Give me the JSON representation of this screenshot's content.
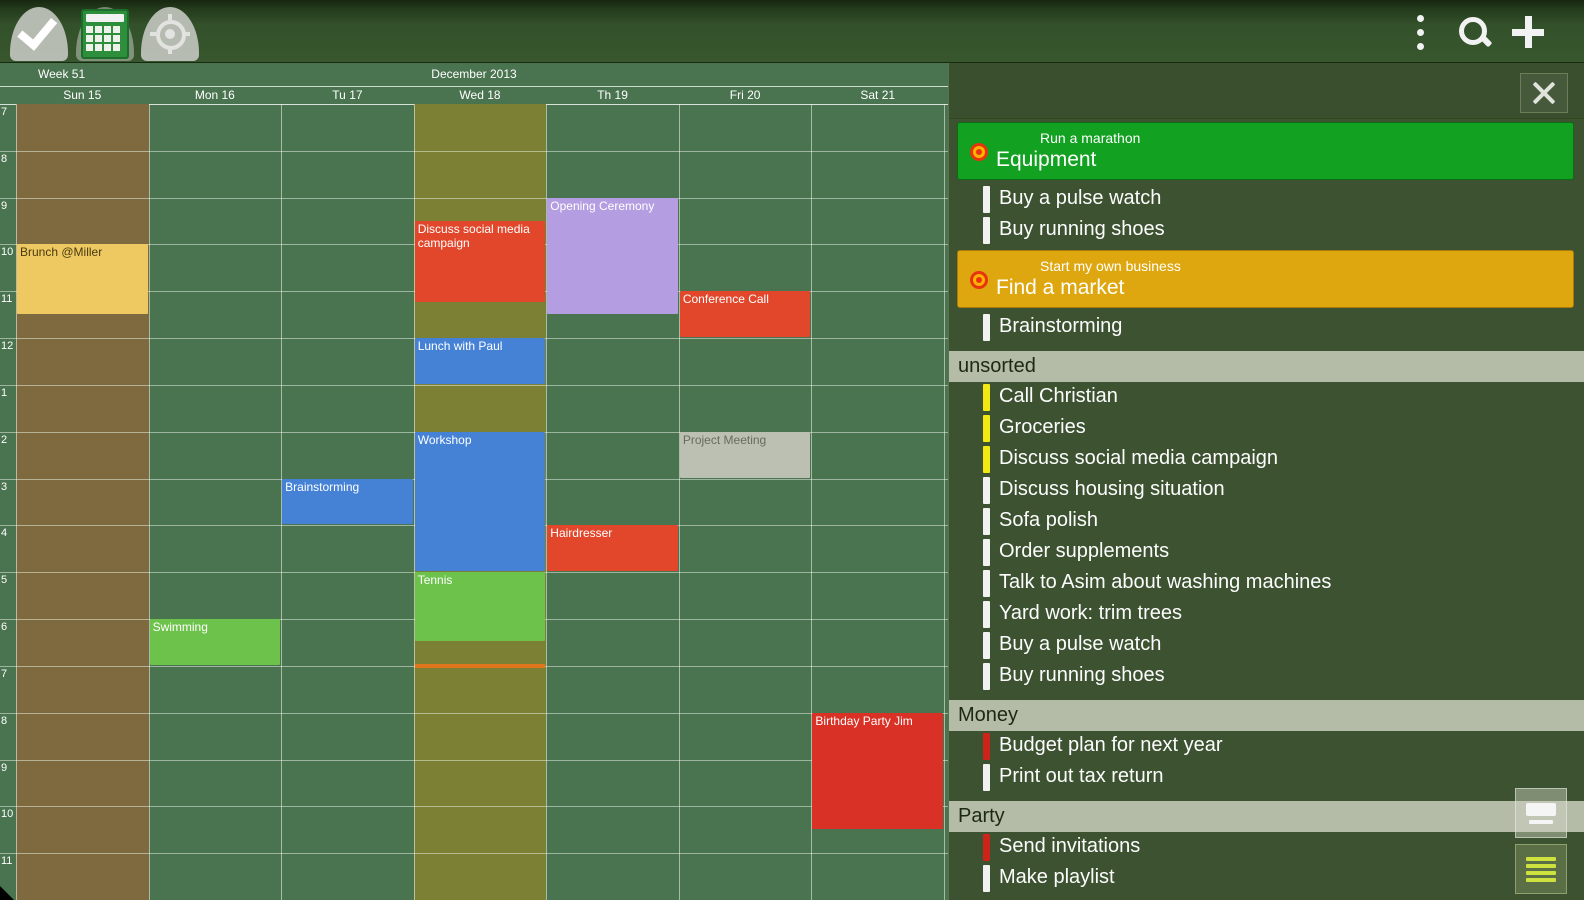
{
  "toolbar": {
    "left_buttons": [
      {
        "name": "done-button",
        "icon": "check-icon"
      },
      {
        "name": "calendar-view-button",
        "icon": "calendar-icon"
      },
      {
        "name": "goals-button",
        "icon": "target-icon"
      }
    ],
    "right_buttons": [
      {
        "name": "overflow-menu-button",
        "icon": "kebab-menu-icon"
      },
      {
        "name": "search-button",
        "icon": "search-icon"
      },
      {
        "name": "add-button",
        "icon": "plus-icon"
      }
    ]
  },
  "calendar": {
    "week_label": "Week 51",
    "month_label": "December  2013",
    "colors": {
      "base_day_bg": "#4a7350",
      "sunday_bg": "#7f6a3f",
      "wednesday_bg": "#7b8034",
      "gridline": "rgba(240,248,238,0.5)"
    },
    "days": [
      {
        "label": "Sun 15",
        "bg": "#7f6a3f"
      },
      {
        "label": "Mon 16",
        "bg": ""
      },
      {
        "label": "Tu 17",
        "bg": ""
      },
      {
        "label": "Wed 18",
        "bg": "#7b8034"
      },
      {
        "label": "Th 19",
        "bg": ""
      },
      {
        "label": "Fri 20",
        "bg": ""
      },
      {
        "label": "Sat 21",
        "bg": ""
      }
    ],
    "hour_labels": [
      "7",
      "8",
      "9",
      "10",
      "11",
      "12",
      "1",
      "2",
      "3",
      "4",
      "5",
      "6",
      "7",
      "8",
      "9",
      "10",
      "11"
    ],
    "events": [
      {
        "day": 0,
        "start": 10,
        "end": 11.5,
        "color": "#eec961",
        "text_color": "#4a3a12",
        "text": "Brunch @Miller"
      },
      {
        "day": 1,
        "start": 18,
        "end": 19,
        "color": "#6dc24b",
        "text_color": "#ffffff",
        "text": "Swimming"
      },
      {
        "day": 2,
        "start": 15,
        "end": 16,
        "color": "#4582d6",
        "text_color": "#ffffff",
        "text": "Brainstorming"
      },
      {
        "day": 3,
        "start": 9.5,
        "end": 11.25,
        "color": "#e2472c",
        "text_color": "#ffffff",
        "text": "Discuss social media campaign"
      },
      {
        "day": 3,
        "start": 12,
        "end": 13,
        "color": "#4582d6",
        "text_color": "#ffffff",
        "text": "Lunch with Paul"
      },
      {
        "day": 3,
        "start": 14,
        "end": 17,
        "color": "#4582d6",
        "text_color": "#ffffff",
        "text": "Workshop"
      },
      {
        "day": 3,
        "start": 17,
        "end": 18.5,
        "color": "#6dc24b",
        "text_color": "#ffffff",
        "text": "Tennis"
      },
      {
        "day": 4,
        "start": 9,
        "end": 11.5,
        "color": "#b49de0",
        "text_color": "#ffffff",
        "text": "Opening Ceremony"
      },
      {
        "day": 4,
        "start": 16,
        "end": 17,
        "color": "#e2472c",
        "text_color": "#ffffff",
        "text": "Hairdresser"
      },
      {
        "day": 5,
        "start": 11,
        "end": 12,
        "color": "#e2472c",
        "text_color": "#ffffff",
        "text": "Conference Call"
      },
      {
        "day": 5,
        "start": 14,
        "end": 15,
        "color": "#bcc0b3",
        "text_color": "#666b60",
        "text": "Project Meeting"
      },
      {
        "day": 6,
        "start": 20,
        "end": 22.5,
        "color": "#d93125",
        "text_color": "#ffffff",
        "text": "Birthday Party Jim"
      }
    ],
    "time_marker": {
      "day": 3,
      "at": 19,
      "color": "#e0761c"
    }
  },
  "panel": {
    "close_icon": "close-icon",
    "sections": [
      {
        "type": "goal",
        "bg": "#12a120",
        "border": "#0a6d14",
        "subtitle": "Run a marathon",
        "title": "Equipment"
      },
      {
        "type": "task",
        "bar": "#f2f2f2",
        "text": "Buy a pulse watch"
      },
      {
        "type": "task",
        "bar": "#f2f2f2",
        "text": "Buy running shoes"
      },
      {
        "type": "goal",
        "bg": "#dfa70f",
        "border": "#a87c06",
        "subtitle": "Start my own business",
        "title": "Find a market"
      },
      {
        "type": "task",
        "bar": "#f2f2f2",
        "text": "Brainstorming"
      },
      {
        "type": "header",
        "text": "unsorted"
      },
      {
        "type": "task",
        "bar": "#f2e813",
        "text": "Call Christian"
      },
      {
        "type": "task",
        "bar": "#f2e813",
        "text": "Groceries"
      },
      {
        "type": "task",
        "bar": "#f2e813",
        "text": "Discuss social media campaign"
      },
      {
        "type": "task",
        "bar": "#f2f2f2",
        "text": "Discuss housing situation"
      },
      {
        "type": "task",
        "bar": "#f2f2f2",
        "text": "Sofa polish"
      },
      {
        "type": "task",
        "bar": "#f2f2f2",
        "text": "Order supplements"
      },
      {
        "type": "task",
        "bar": "#f2f2f2",
        "text": "Talk to Asim about washing machines"
      },
      {
        "type": "task",
        "bar": "#f2f2f2",
        "text": "Yard work: trim trees"
      },
      {
        "type": "task",
        "bar": "#f2f2f2",
        "text": "Buy a pulse watch"
      },
      {
        "type": "task",
        "bar": "#f2f2f2",
        "text": "Buy running shoes"
      },
      {
        "type": "header",
        "text": "Money"
      },
      {
        "type": "task",
        "bar": "#cc2418",
        "text": "Budget plan for next year"
      },
      {
        "type": "task",
        "bar": "#f2f2f2",
        "text": "Print out tax return"
      },
      {
        "type": "header",
        "text": "Party"
      },
      {
        "type": "task",
        "bar": "#cc2418",
        "text": "Send invitations"
      },
      {
        "type": "task",
        "bar": "#f2f2f2",
        "text": "Make playlist"
      }
    ],
    "floating_buttons": [
      {
        "name": "keyboard-button",
        "icon": "keyboard-icon"
      },
      {
        "name": "list-button",
        "icon": "list-icon"
      }
    ]
  }
}
